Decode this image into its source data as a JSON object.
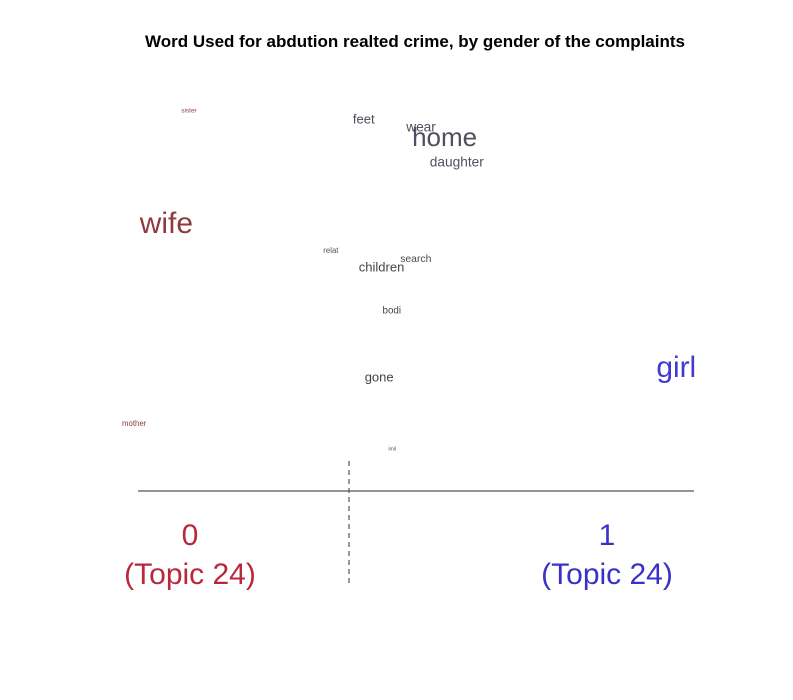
{
  "chart_data": {
    "type": "scatter",
    "title": "Word Used for abdution realted crime, by gender of the complaints",
    "xlabel": "",
    "ylabel": "",
    "xlim": [
      0,
      1
    ],
    "grid": false,
    "colors": {
      "low": "#8f3b3e",
      "mid": "#4f4f5e",
      "high": "#4338d1"
    },
    "groups": [
      {
        "value": "0",
        "topic": "(Topic 24)",
        "color": "#b8283a"
      },
      {
        "value": "1",
        "topic": "(Topic 24)",
        "color": "#3a31c8"
      }
    ],
    "words": [
      {
        "text": "sister",
        "x": 0.1,
        "weight": 0.5,
        "color": "#8f3b3e"
      },
      {
        "text": "feet",
        "x": 0.39,
        "weight": 1.0,
        "color": "#4a4a55"
      },
      {
        "text": "wear",
        "x": 0.48,
        "weight": 1.05,
        "color": "#4f4f60"
      },
      {
        "text": "home",
        "x": 0.49,
        "weight": 2.0,
        "color": "#4f4f60"
      },
      {
        "text": "daughter",
        "x": 0.52,
        "weight": 1.05,
        "color": "#505060"
      },
      {
        "text": "wife",
        "x": 0.03,
        "weight": 2.3,
        "color": "#8f3b3e"
      },
      {
        "text": "relat",
        "x": 0.34,
        "weight": 0.6,
        "color": "#555555"
      },
      {
        "text": "search",
        "x": 0.47,
        "weight": 0.8,
        "color": "#4a4a55"
      },
      {
        "text": "children",
        "x": 0.4,
        "weight": 1.0,
        "color": "#444444"
      },
      {
        "text": "bodi",
        "x": 0.44,
        "weight": 0.75,
        "color": "#444444"
      },
      {
        "text": "gone",
        "x": 0.41,
        "weight": 1.0,
        "color": "#444444"
      },
      {
        "text": "girl",
        "x": 0.97,
        "weight": 2.3,
        "color": "#4338d1"
      },
      {
        "text": "mother",
        "x": 0.0,
        "weight": 0.6,
        "color": "#8f3b3e"
      },
      {
        "text": "imil",
        "x": 0.45,
        "weight": 0.4,
        "color": "#555555"
      }
    ]
  }
}
